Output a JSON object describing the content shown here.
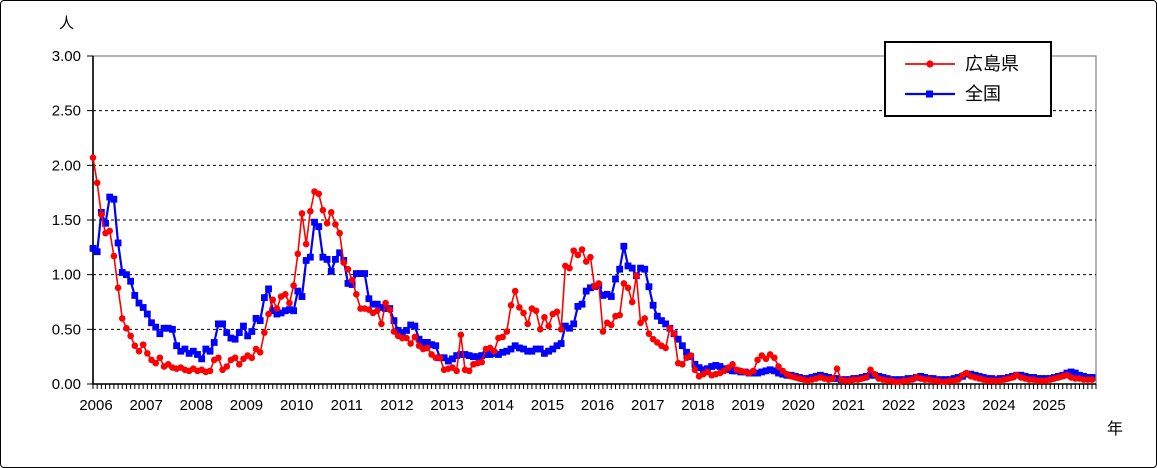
{
  "figure": {
    "y_axis_unit": "人",
    "x_axis_unit": "年",
    "background_color": "#ffffff",
    "plot_border_color": "#808080",
    "axis_color": "#000000"
  },
  "legend": {
    "position": "inside top-right",
    "items": [
      "広島県",
      "全国"
    ]
  },
  "chart_data": {
    "type": "line",
    "title": "",
    "xlabel": "年",
    "ylabel": "人",
    "x_unit": "month",
    "x_range": "2006-01 to 2025-12",
    "points_per_year": 12,
    "years": [
      "2006",
      "2007",
      "2008",
      "2009",
      "2010",
      "2011",
      "2012",
      "2013",
      "2014",
      "2015",
      "2016",
      "2017",
      "2018",
      "2019",
      "2020",
      "2021",
      "2022",
      "2023",
      "2024",
      "2025"
    ],
    "ylim": [
      0,
      3
    ],
    "y_ticks": [
      "0.00",
      "0.50",
      "1.00",
      "1.50",
      "2.00",
      "2.50",
      "3.00"
    ],
    "grid": "horizontal dashed",
    "legend_position": "inside top-right",
    "series": [
      {
        "name": "広島県",
        "color": "#ff0000",
        "marker": "circle",
        "values": [
          2.07,
          1.84,
          1.55,
          1.38,
          1.4,
          1.17,
          0.88,
          0.6,
          0.51,
          0.44,
          0.35,
          0.3,
          0.36,
          0.28,
          0.22,
          0.19,
          0.24,
          0.16,
          0.18,
          0.15,
          0.14,
          0.15,
          0.13,
          0.12,
          0.14,
          0.12,
          0.13,
          0.11,
          0.12,
          0.22,
          0.24,
          0.13,
          0.16,
          0.22,
          0.24,
          0.18,
          0.23,
          0.26,
          0.24,
          0.32,
          0.29,
          0.47,
          0.64,
          0.77,
          0.69,
          0.8,
          0.82,
          0.74,
          0.9,
          1.19,
          1.56,
          1.28,
          1.58,
          1.76,
          1.74,
          1.59,
          1.47,
          1.57,
          1.46,
          1.38,
          1.11,
          1.05,
          0.95,
          0.82,
          0.69,
          0.69,
          0.68,
          0.65,
          0.67,
          0.55,
          0.74,
          0.68,
          0.48,
          0.44,
          0.42,
          0.42,
          0.37,
          0.43,
          0.35,
          0.32,
          0.33,
          0.27,
          0.24,
          0.24,
          0.13,
          0.14,
          0.15,
          0.12,
          0.45,
          0.13,
          0.12,
          0.18,
          0.19,
          0.2,
          0.32,
          0.33,
          0.3,
          0.42,
          0.43,
          0.48,
          0.72,
          0.85,
          0.7,
          0.65,
          0.55,
          0.69,
          0.67,
          0.5,
          0.61,
          0.53,
          0.64,
          0.66,
          0.5,
          1.08,
          1.06,
          1.22,
          1.18,
          1.23,
          1.12,
          1.16,
          0.89,
          0.92,
          0.48,
          0.56,
          0.54,
          0.62,
          0.63,
          0.92,
          0.88,
          0.75,
          0.99,
          0.56,
          0.6,
          0.46,
          0.41,
          0.38,
          0.35,
          0.33,
          0.51,
          0.46,
          0.19,
          0.18,
          0.24,
          0.26,
          0.13,
          0.07,
          0.09,
          0.11,
          0.08,
          0.09,
          0.1,
          0.12,
          0.15,
          0.18,
          0.13,
          0.12,
          0.11,
          0.1,
          0.12,
          0.22,
          0.26,
          0.23,
          0.27,
          0.24,
          0.16,
          0.12,
          0.09,
          0.07,
          0.06,
          0.05,
          0.04,
          0.03,
          0.04,
          0.05,
          0.06,
          0.05,
          0.04,
          0.05,
          0.14,
          0.04,
          0.03,
          0.03,
          0.04,
          0.04,
          0.05,
          0.06,
          0.13,
          0.09,
          0.05,
          0.04,
          0.03,
          0.03,
          0.02,
          0.02,
          0.03,
          0.03,
          0.04,
          0.06,
          0.05,
          0.04,
          0.04,
          0.03,
          0.03,
          0.02,
          0.02,
          0.03,
          0.03,
          0.04,
          0.08,
          0.1,
          0.07,
          0.06,
          0.05,
          0.04,
          0.03,
          0.03,
          0.03,
          0.03,
          0.04,
          0.05,
          0.06,
          0.08,
          0.06,
          0.05,
          0.04,
          0.04,
          0.03,
          0.03,
          0.03,
          0.04,
          0.05,
          0.06,
          0.07,
          0.08,
          0.06,
          0.05,
          0.05,
          0.04,
          0.04,
          0.04
        ]
      },
      {
        "name": "全国",
        "color": "#0000ff",
        "marker": "square",
        "values": [
          1.24,
          1.21,
          1.57,
          1.47,
          1.71,
          1.69,
          1.29,
          1.02,
          1.0,
          0.94,
          0.81,
          0.74,
          0.7,
          0.64,
          0.56,
          0.52,
          0.46,
          0.51,
          0.51,
          0.5,
          0.35,
          0.3,
          0.32,
          0.28,
          0.3,
          0.27,
          0.23,
          0.32,
          0.3,
          0.38,
          0.55,
          0.55,
          0.47,
          0.42,
          0.41,
          0.47,
          0.53,
          0.44,
          0.48,
          0.6,
          0.58,
          0.79,
          0.87,
          0.67,
          0.64,
          0.65,
          0.67,
          0.68,
          0.67,
          0.85,
          0.8,
          1.13,
          1.16,
          1.48,
          1.44,
          1.16,
          1.14,
          1.03,
          1.14,
          1.2,
          1.13,
          0.92,
          0.91,
          1.01,
          1.01,
          1.01,
          0.78,
          0.73,
          0.73,
          0.7,
          0.69,
          0.69,
          0.58,
          0.49,
          0.47,
          0.49,
          0.54,
          0.53,
          0.41,
          0.38,
          0.38,
          0.36,
          0.35,
          0.24,
          0.24,
          0.21,
          0.23,
          0.26,
          0.27,
          0.27,
          0.26,
          0.25,
          0.25,
          0.26,
          0.27,
          0.27,
          0.28,
          0.27,
          0.29,
          0.3,
          0.32,
          0.35,
          0.33,
          0.32,
          0.3,
          0.3,
          0.32,
          0.32,
          0.28,
          0.3,
          0.32,
          0.35,
          0.37,
          0.53,
          0.51,
          0.55,
          0.71,
          0.73,
          0.85,
          0.88,
          0.89,
          0.9,
          0.81,
          0.82,
          0.8,
          0.96,
          1.05,
          1.26,
          1.08,
          1.06,
          0.99,
          1.06,
          1.05,
          0.89,
          0.72,
          0.62,
          0.58,
          0.55,
          0.51,
          0.46,
          0.41,
          0.35,
          0.29,
          0.25,
          0.18,
          0.15,
          0.13,
          0.14,
          0.16,
          0.17,
          0.16,
          0.14,
          0.13,
          0.12,
          0.12,
          0.11,
          0.11,
          0.1,
          0.1,
          0.1,
          0.11,
          0.12,
          0.13,
          0.12,
          0.1,
          0.09,
          0.08,
          0.08,
          0.07,
          0.06,
          0.05,
          0.05,
          0.06,
          0.07,
          0.08,
          0.07,
          0.06,
          0.05,
          0.05,
          0.04,
          0.04,
          0.04,
          0.05,
          0.05,
          0.06,
          0.07,
          0.08,
          0.08,
          0.07,
          0.06,
          0.05,
          0.04,
          0.04,
          0.04,
          0.04,
          0.05,
          0.05,
          0.06,
          0.07,
          0.06,
          0.05,
          0.05,
          0.04,
          0.04,
          0.04,
          0.04,
          0.05,
          0.06,
          0.07,
          0.09,
          0.09,
          0.08,
          0.07,
          0.06,
          0.05,
          0.05,
          0.04,
          0.05,
          0.05,
          0.06,
          0.07,
          0.08,
          0.08,
          0.07,
          0.06,
          0.06,
          0.05,
          0.05,
          0.05,
          0.05,
          0.06,
          0.07,
          0.08,
          0.1,
          0.11,
          0.1,
          0.08,
          0.07,
          0.06,
          0.06
        ]
      }
    ]
  }
}
